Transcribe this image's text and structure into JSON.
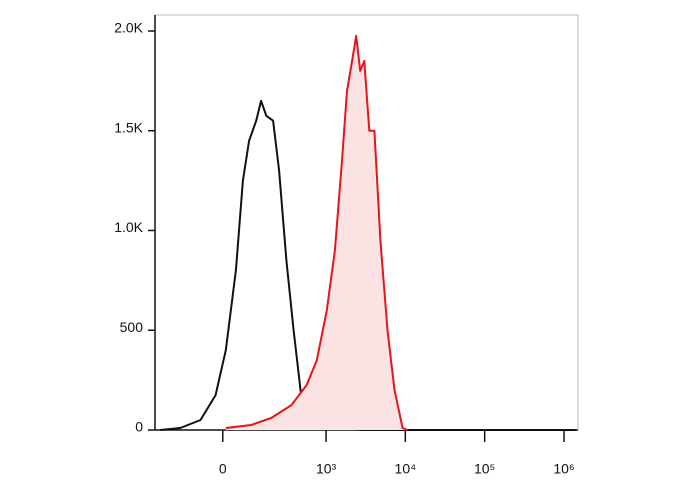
{
  "chart_data": {
    "type": "line",
    "xscale": "biexponential",
    "xlim": [
      -350,
      1500000
    ],
    "xticks": [
      {
        "value": 0,
        "label": "0"
      },
      {
        "value": 1000,
        "label": "10³"
      },
      {
        "value": 10000,
        "label": "10⁴"
      },
      {
        "value": 100000,
        "label": "10⁵"
      },
      {
        "value": 1000000,
        "label": "10⁶"
      }
    ],
    "ylim": [
      0,
      2080
    ],
    "yticks": [
      0,
      500,
      {
        "value": 1000,
        "label": "1.0K"
      },
      {
        "value": 1500,
        "label": "1.5K"
      },
      {
        "value": 2000,
        "label": "2.0K"
      }
    ],
    "series": [
      {
        "color": "#111111",
        "x": [
          -300,
          -157,
          -69,
          -21,
          9,
          39,
          62,
          84,
          113,
          136,
          163,
          204,
          247,
          309,
          384,
          489,
          656,
          1186,
          2860,
          1400000
        ],
        "values": [
          0,
          10,
          50,
          175,
          400,
          800,
          1250,
          1450,
          1550,
          1650,
          1575,
          1550,
          1300,
          850,
          500,
          150,
          25,
          10,
          0,
          0
        ]
      },
      {
        "color": "#e8141b",
        "fill": "#fbe3e4",
        "x": [
          9,
          92,
          192,
          360,
          566,
          762,
          1023,
          1294,
          1590,
          1840,
          2130,
          2400,
          2700,
          3040,
          3510,
          4070,
          4850,
          5960,
          7310,
          9250,
          10710
        ],
        "values": [
          10,
          25,
          60,
          125,
          225,
          350,
          600,
          900,
          1350,
          1700,
          1850,
          1975,
          1800,
          1850,
          1500,
          1500,
          950,
          500,
          200,
          10,
          0
        ]
      }
    ]
  }
}
